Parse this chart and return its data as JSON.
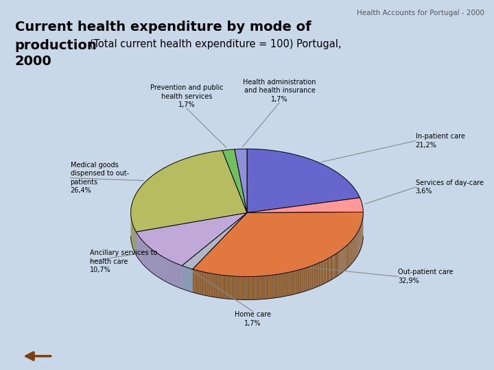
{
  "header": "Health Accounts for Portugal - 2000",
  "title_bold": "Current health expenditure by mode of",
  "title_bold2": "production",
  "title_normal": "(Total current health expenditure = 100) Portugal,",
  "title_normal2": "2000",
  "slices": [
    {
      "label": "In-patient care\n21,2%",
      "value": 21.2,
      "color": "#6666CC",
      "depth_color": "#4444AA"
    },
    {
      "label": "Services of day-care\n3,6%",
      "value": 3.6,
      "color": "#FF9999",
      "depth_color": "#CC6666"
    },
    {
      "label": "Out-patient care\n32,9%",
      "value": 32.9,
      "color": "#E07840",
      "depth_color": "#8B5A2B"
    },
    {
      "label": "Home care\n1,7%",
      "value": 1.7,
      "color": "#B0B8C8",
      "depth_color": "#7080A0"
    },
    {
      "label": "Ancillary services to\nhealth care\n10,7%",
      "value": 10.7,
      "color": "#C0A8D8",
      "depth_color": "#8878A8"
    },
    {
      "label": "Medical goods\ndispensed to out-\npatients\n26,4%",
      "value": 26.4,
      "color": "#B8BC60",
      "depth_color": "#888840"
    },
    {
      "label": "Prevention and public\nhealth services\n1,7%",
      "value": 1.7,
      "color": "#70C060",
      "depth_color": "#408030"
    },
    {
      "label": "Health administration\nand health insurance\n1,7%",
      "value": 1.7,
      "color": "#9090D8",
      "depth_color": "#6060A8"
    }
  ],
  "bg_color": "#C8D8E8",
  "chart_bg": "#FFFFFF",
  "header_color": "#555555",
  "title_color": "#000000",
  "nav_bg": "#D4A060",
  "nav_arrow": "#7B4010"
}
